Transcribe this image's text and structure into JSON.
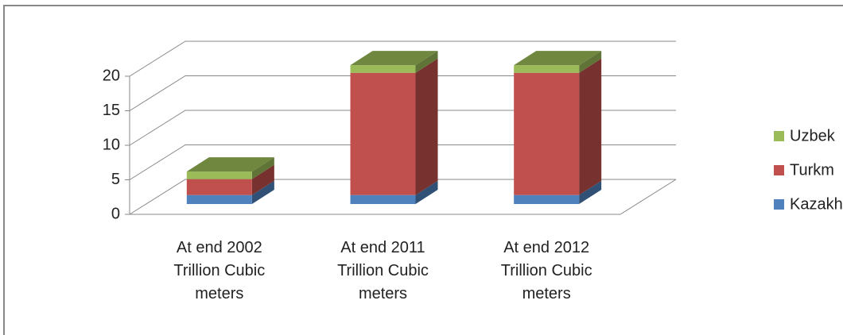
{
  "chart_data": {
    "type": "bar3d_stacked",
    "categories": [
      "At end 2002\nTrillion Cubic\nmeters",
      "At end 2011\nTrillion Cubic\nmeters",
      "At end 2012\nTrillion Cubic\nmeters"
    ],
    "series": [
      {
        "name": "Kazakh",
        "color": "#4f81bd",
        "values": [
          1.3,
          1.3,
          1.3
        ]
      },
      {
        "name": "Turkm",
        "color": "#c0504d",
        "values": [
          2.3,
          17.7,
          17.7
        ]
      },
      {
        "name": "Uzbek",
        "color": "#9bbb59",
        "values": [
          1.1,
          1.1,
          1.1
        ]
      }
    ],
    "ylim": [
      0,
      20
    ],
    "yticks": [
      0,
      5,
      10,
      15,
      20
    ],
    "grid": true,
    "legend": "right"
  }
}
